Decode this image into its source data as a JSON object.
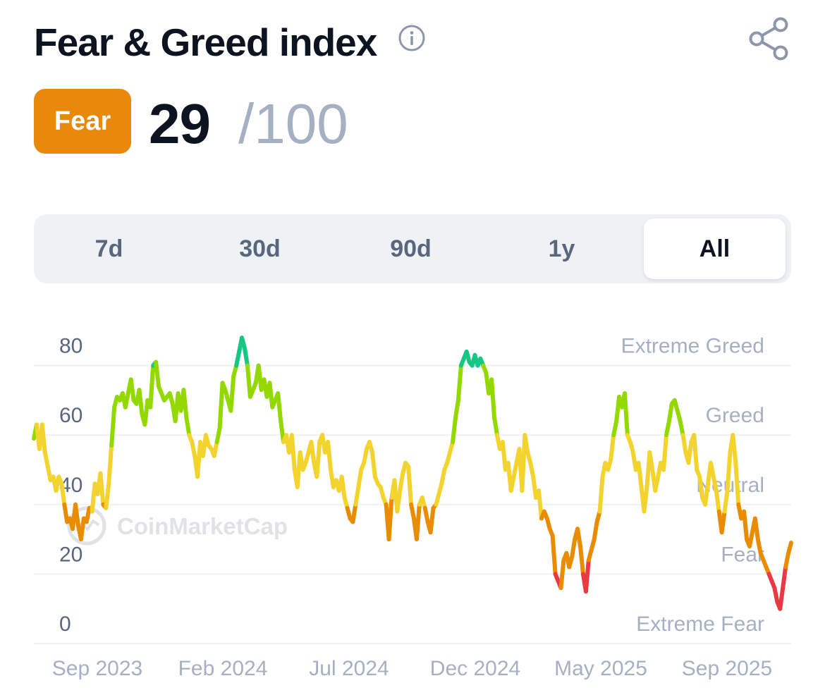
{
  "header": {
    "title": "Fear & Greed index",
    "info_icon": "info-icon",
    "share_icon": "share-icon"
  },
  "score": {
    "label": "Fear",
    "value": "29",
    "max": "/100",
    "badge_color": "#e8890c"
  },
  "tabs": [
    {
      "label": "7d",
      "active": false
    },
    {
      "label": "30d",
      "active": false
    },
    {
      "label": "90d",
      "active": false
    },
    {
      "label": "1y",
      "active": false
    },
    {
      "label": "All",
      "active": true
    }
  ],
  "watermark": "CoinMarketCap",
  "colors": {
    "extreme_greed": "#16c784",
    "greed": "#93d900",
    "neutral": "#f3d42f",
    "fear": "#ea8c00",
    "extreme_fear": "#ea3943",
    "grid": "#eff2f5",
    "axis_text": "#a6b0c3"
  },
  "chart_data": {
    "type": "line",
    "ylim": [
      0,
      100
    ],
    "yticks": [
      "0",
      "20",
      "40",
      "60",
      "80"
    ],
    "zone_labels": [
      "Extreme Fear",
      "Fear",
      "Neutral",
      "Greed",
      "Extreme Greed"
    ],
    "xticks": [
      "Sep 2023",
      "Feb 2024",
      "Jul 2024",
      "Dec 2024",
      "May 2025",
      "Sep 2025"
    ],
    "series": [
      {
        "values": [
          59,
          63,
          56,
          63,
          55,
          51,
          47,
          48,
          44,
          48,
          46,
          40,
          35,
          36,
          33,
          40,
          34,
          30,
          36,
          35,
          39,
          38,
          46,
          43,
          49,
          40,
          39,
          46,
          57,
          68,
          71,
          70,
          72,
          68,
          72,
          76,
          70,
          69,
          73,
          66,
          63,
          70,
          68,
          80,
          81,
          74,
          72,
          70,
          71,
          72,
          69,
          64,
          72,
          67,
          73,
          65,
          60,
          58,
          54,
          48,
          58,
          54,
          60,
          57,
          56,
          54,
          58,
          62,
          75,
          73,
          70,
          67,
          77,
          80,
          84,
          88,
          85,
          80,
          71,
          73,
          75,
          80,
          73,
          76,
          71,
          75,
          68,
          70,
          72,
          64,
          58,
          60,
          55,
          60,
          50,
          45,
          55,
          50,
          52,
          55,
          58,
          52,
          48,
          58,
          60,
          55,
          58,
          50,
          45,
          47,
          44,
          48,
          42,
          39,
          36,
          35,
          40,
          45,
          50,
          52,
          56,
          58,
          55,
          48,
          46,
          45,
          42,
          40,
          30,
          42,
          47,
          38,
          44,
          49,
          52,
          51,
          40,
          36,
          30,
          40,
          42,
          39,
          35,
          32,
          39,
          40,
          43,
          46,
          50,
          52,
          55,
          58,
          65,
          70,
          80,
          82,
          84,
          81,
          80,
          83,
          80,
          82,
          80,
          78,
          72,
          76,
          65,
          60,
          56,
          58,
          50,
          52,
          44,
          48,
          52,
          56,
          44,
          60,
          55,
          52,
          48,
          42,
          44,
          36,
          38,
          36,
          33,
          31,
          20,
          18,
          16,
          24,
          26,
          22,
          25,
          30,
          33,
          28,
          20,
          15,
          24,
          27,
          30,
          35,
          38,
          48,
          52,
          50,
          53,
          60,
          64,
          71,
          68,
          72,
          60,
          58,
          55,
          50,
          52,
          45,
          38,
          45,
          55,
          50,
          44,
          48,
          52,
          50,
          60,
          64,
          69,
          70,
          67,
          64,
          60,
          55,
          52,
          58,
          60,
          50,
          48,
          42,
          40,
          46,
          52,
          48,
          44,
          38,
          32,
          38,
          44,
          55,
          60,
          52,
          40,
          36,
          38,
          30,
          28,
          32,
          36,
          30,
          26,
          24,
          22,
          20,
          18,
          16,
          12,
          10,
          16,
          22,
          26,
          29
        ]
      }
    ]
  }
}
